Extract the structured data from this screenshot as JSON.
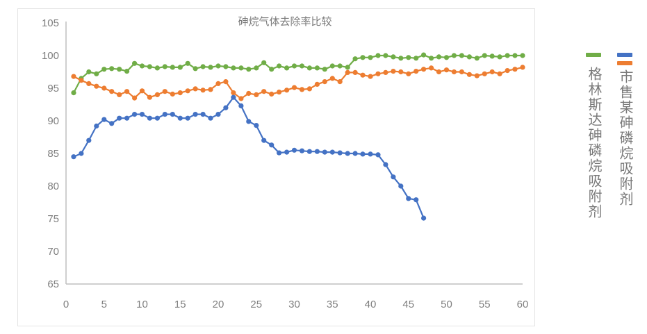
{
  "chart_data": {
    "type": "line",
    "title": "砷烷气体去除率比较",
    "xlabel": "",
    "ylabel": "",
    "xlim": [
      0,
      60
    ],
    "ylim": [
      65,
      105
    ],
    "x_ticks": [
      0,
      5,
      10,
      15,
      20,
      25,
      30,
      35,
      40,
      45,
      50,
      55,
      60
    ],
    "y_ticks": [
      65,
      70,
      75,
      80,
      85,
      90,
      95,
      100,
      105
    ],
    "grid": false,
    "legend_position": "right",
    "series": [
      {
        "name": "格林斯达砷磷烷吸附剂",
        "color": "#70ad47",
        "x": [
          1,
          2,
          3,
          4,
          5,
          6,
          7,
          8,
          9,
          10,
          11,
          12,
          13,
          14,
          15,
          16,
          17,
          18,
          19,
          20,
          21,
          22,
          23,
          24,
          25,
          26,
          27,
          28,
          29,
          30,
          31,
          32,
          33,
          34,
          35,
          36,
          37,
          38,
          39,
          40,
          41,
          42,
          43,
          44,
          45,
          46,
          47,
          48,
          49,
          50,
          51,
          52,
          53,
          54,
          55,
          56,
          57,
          58,
          59,
          60
        ],
        "values": [
          94.3,
          96.5,
          97.5,
          97.2,
          97.9,
          98.0,
          97.9,
          97.6,
          98.8,
          98.4,
          98.3,
          98.1,
          98.3,
          98.2,
          98.2,
          98.8,
          98.0,
          98.3,
          98.2,
          98.4,
          98.3,
          98.1,
          98.1,
          97.9,
          98.1,
          98.9,
          97.9,
          98.4,
          98.1,
          98.4,
          98.4,
          98.1,
          98.1,
          97.9,
          98.4,
          98.4,
          98.2,
          99.5,
          99.7,
          99.7,
          100.0,
          100.0,
          99.8,
          99.6,
          99.7,
          99.6,
          100.1,
          99.6,
          99.8,
          99.7,
          100.0,
          100.0,
          99.8,
          99.6,
          100.0,
          99.9,
          99.8,
          100.0,
          100.0,
          100.0
        ]
      },
      {
        "name": "市售某砷磷烷吸附剂",
        "color": "#4472c4",
        "x": [
          1,
          2,
          3,
          4,
          5,
          6,
          7,
          8,
          9,
          10,
          11,
          12,
          13,
          14,
          15,
          16,
          17,
          18,
          19,
          20,
          21,
          22,
          23,
          24,
          25,
          26,
          27,
          28,
          29,
          30,
          31,
          32,
          33,
          34,
          35,
          36,
          37,
          38,
          39,
          40,
          41,
          42,
          43,
          44,
          45,
          46,
          47
        ],
        "values": [
          84.5,
          85.0,
          87.0,
          89.2,
          90.2,
          89.6,
          90.4,
          90.4,
          91.0,
          91.0,
          90.4,
          90.4,
          91.0,
          91.0,
          90.4,
          90.4,
          91.0,
          91.0,
          90.4,
          91.0,
          92.0,
          93.6,
          92.3,
          89.9,
          89.3,
          87.0,
          86.3,
          85.1,
          85.2,
          85.5,
          85.4,
          85.3,
          85.3,
          85.2,
          85.2,
          85.1,
          85.0,
          85.0,
          84.9,
          84.9,
          84.8,
          83.3,
          81.4,
          80.0,
          78.1,
          77.9,
          75.1
        ]
      },
      {
        "name": "市售某砷磷烷吸附剂",
        "color": "#ed7d31",
        "x": [
          1,
          2,
          3,
          4,
          5,
          6,
          7,
          8,
          9,
          10,
          11,
          12,
          13,
          14,
          15,
          16,
          17,
          18,
          19,
          20,
          21,
          22,
          23,
          24,
          25,
          26,
          27,
          28,
          29,
          30,
          31,
          32,
          33,
          34,
          35,
          36,
          37,
          38,
          39,
          40,
          41,
          42,
          43,
          44,
          45,
          46,
          47,
          48,
          49,
          50,
          51,
          52,
          53,
          54,
          55,
          56,
          57,
          58,
          59,
          60
        ],
        "values": [
          96.8,
          96.2,
          95.7,
          95.3,
          95.0,
          94.5,
          94.0,
          94.5,
          93.5,
          94.6,
          93.6,
          94.0,
          94.5,
          94.1,
          94.3,
          94.6,
          94.9,
          94.7,
          94.8,
          95.7,
          96.0,
          94.3,
          93.4,
          94.2,
          94.0,
          94.5,
          94.1,
          94.4,
          94.7,
          95.1,
          94.8,
          94.9,
          95.6,
          96.0,
          96.5,
          96.0,
          97.4,
          97.4,
          97.0,
          96.8,
          97.2,
          97.4,
          97.6,
          97.5,
          97.2,
          97.6,
          97.9,
          98.1,
          97.5,
          97.8,
          97.5,
          97.5,
          97.1,
          96.9,
          97.2,
          97.5,
          97.2,
          97.7,
          97.9,
          98.2
        ]
      }
    ]
  },
  "legend": {
    "items": [
      {
        "label": "格林斯达砷磷烷吸附剂",
        "swatches": [
          "#70ad47"
        ]
      },
      {
        "label": "市售某砷磷烷吸附剂",
        "swatches": [
          "#4472c4",
          "#ed7d31"
        ]
      }
    ]
  }
}
